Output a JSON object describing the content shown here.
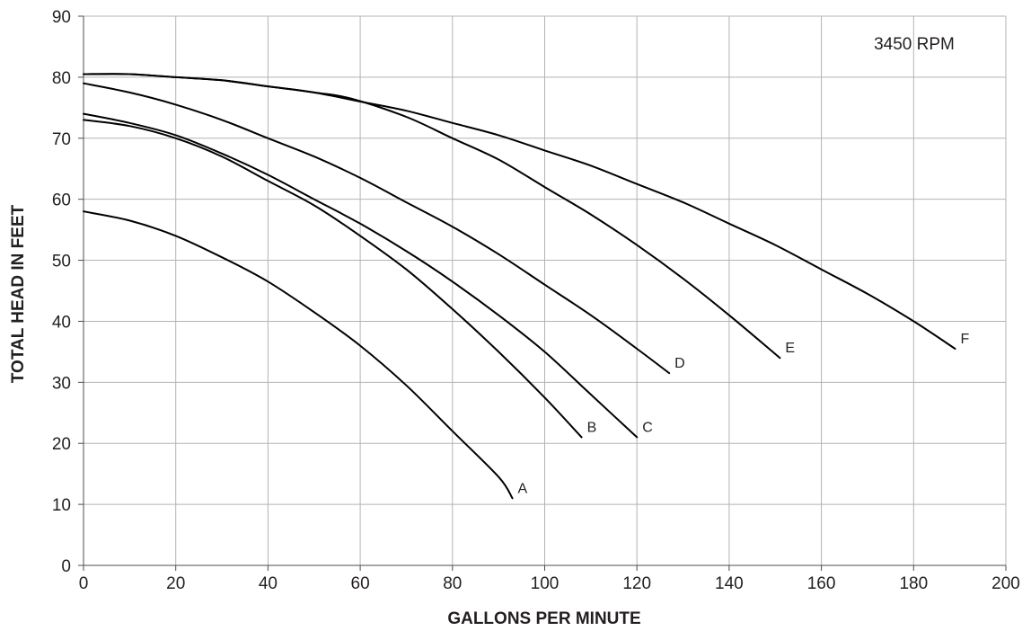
{
  "chart_data": {
    "type": "line",
    "title": "",
    "xlabel": "GALLONS PER MINUTE",
    "ylabel": "TOTAL HEAD IN FEET",
    "xlim": [
      0,
      200
    ],
    "ylim": [
      0,
      90
    ],
    "xticks": [
      0,
      20,
      40,
      60,
      80,
      100,
      120,
      140,
      160,
      180,
      200
    ],
    "yticks": [
      0,
      10,
      20,
      30,
      40,
      50,
      60,
      70,
      80,
      90
    ],
    "grid": true,
    "annotation": "3450 RPM",
    "series": [
      {
        "name": "A",
        "x": [
          0,
          10,
          20,
          30,
          40,
          50,
          60,
          70,
          80,
          90,
          93
        ],
        "y": [
          58,
          56.5,
          54,
          50.5,
          46.5,
          41.5,
          36,
          29.5,
          22,
          14.5,
          11
        ]
      },
      {
        "name": "B",
        "x": [
          0,
          10,
          20,
          30,
          40,
          50,
          60,
          70,
          80,
          90,
          100,
          108
        ],
        "y": [
          73,
          72,
          70,
          67,
          63,
          59,
          54,
          48.5,
          42,
          35,
          27.5,
          21
        ]
      },
      {
        "name": "C",
        "x": [
          0,
          10,
          20,
          30,
          40,
          50,
          60,
          70,
          80,
          90,
          100,
          110,
          120
        ],
        "y": [
          74,
          72.5,
          70.5,
          67.5,
          64,
          60,
          56,
          51.5,
          46.5,
          41,
          35,
          28,
          21
        ]
      },
      {
        "name": "D",
        "x": [
          0,
          10,
          20,
          30,
          40,
          50,
          60,
          70,
          80,
          90,
          100,
          110,
          120,
          127
        ],
        "y": [
          79,
          77.5,
          75.5,
          73,
          70,
          67,
          63.5,
          59.5,
          55.5,
          51,
          46,
          41,
          35.5,
          31.5
        ]
      },
      {
        "name": "E",
        "x": [
          0,
          10,
          20,
          30,
          40,
          50,
          58,
          70,
          80,
          90,
          100,
          110,
          120,
          130,
          140,
          151
        ],
        "y": [
          80.5,
          80.5,
          80,
          79.5,
          78.5,
          77.5,
          76.5,
          73.5,
          70,
          66.5,
          62,
          57.5,
          52.5,
          47,
          41,
          34
        ]
      },
      {
        "name": "F",
        "x": [
          0,
          10,
          20,
          30,
          40,
          50,
          60,
          70,
          80,
          90,
          100,
          110,
          120,
          130,
          140,
          150,
          160,
          170,
          180,
          189
        ],
        "y": [
          80.5,
          80.5,
          80,
          79.5,
          78.5,
          77.5,
          76,
          74.5,
          72.5,
          70.5,
          68,
          65.5,
          62.5,
          59.5,
          56,
          52.5,
          48.5,
          44.5,
          40,
          35.5
        ]
      }
    ]
  }
}
